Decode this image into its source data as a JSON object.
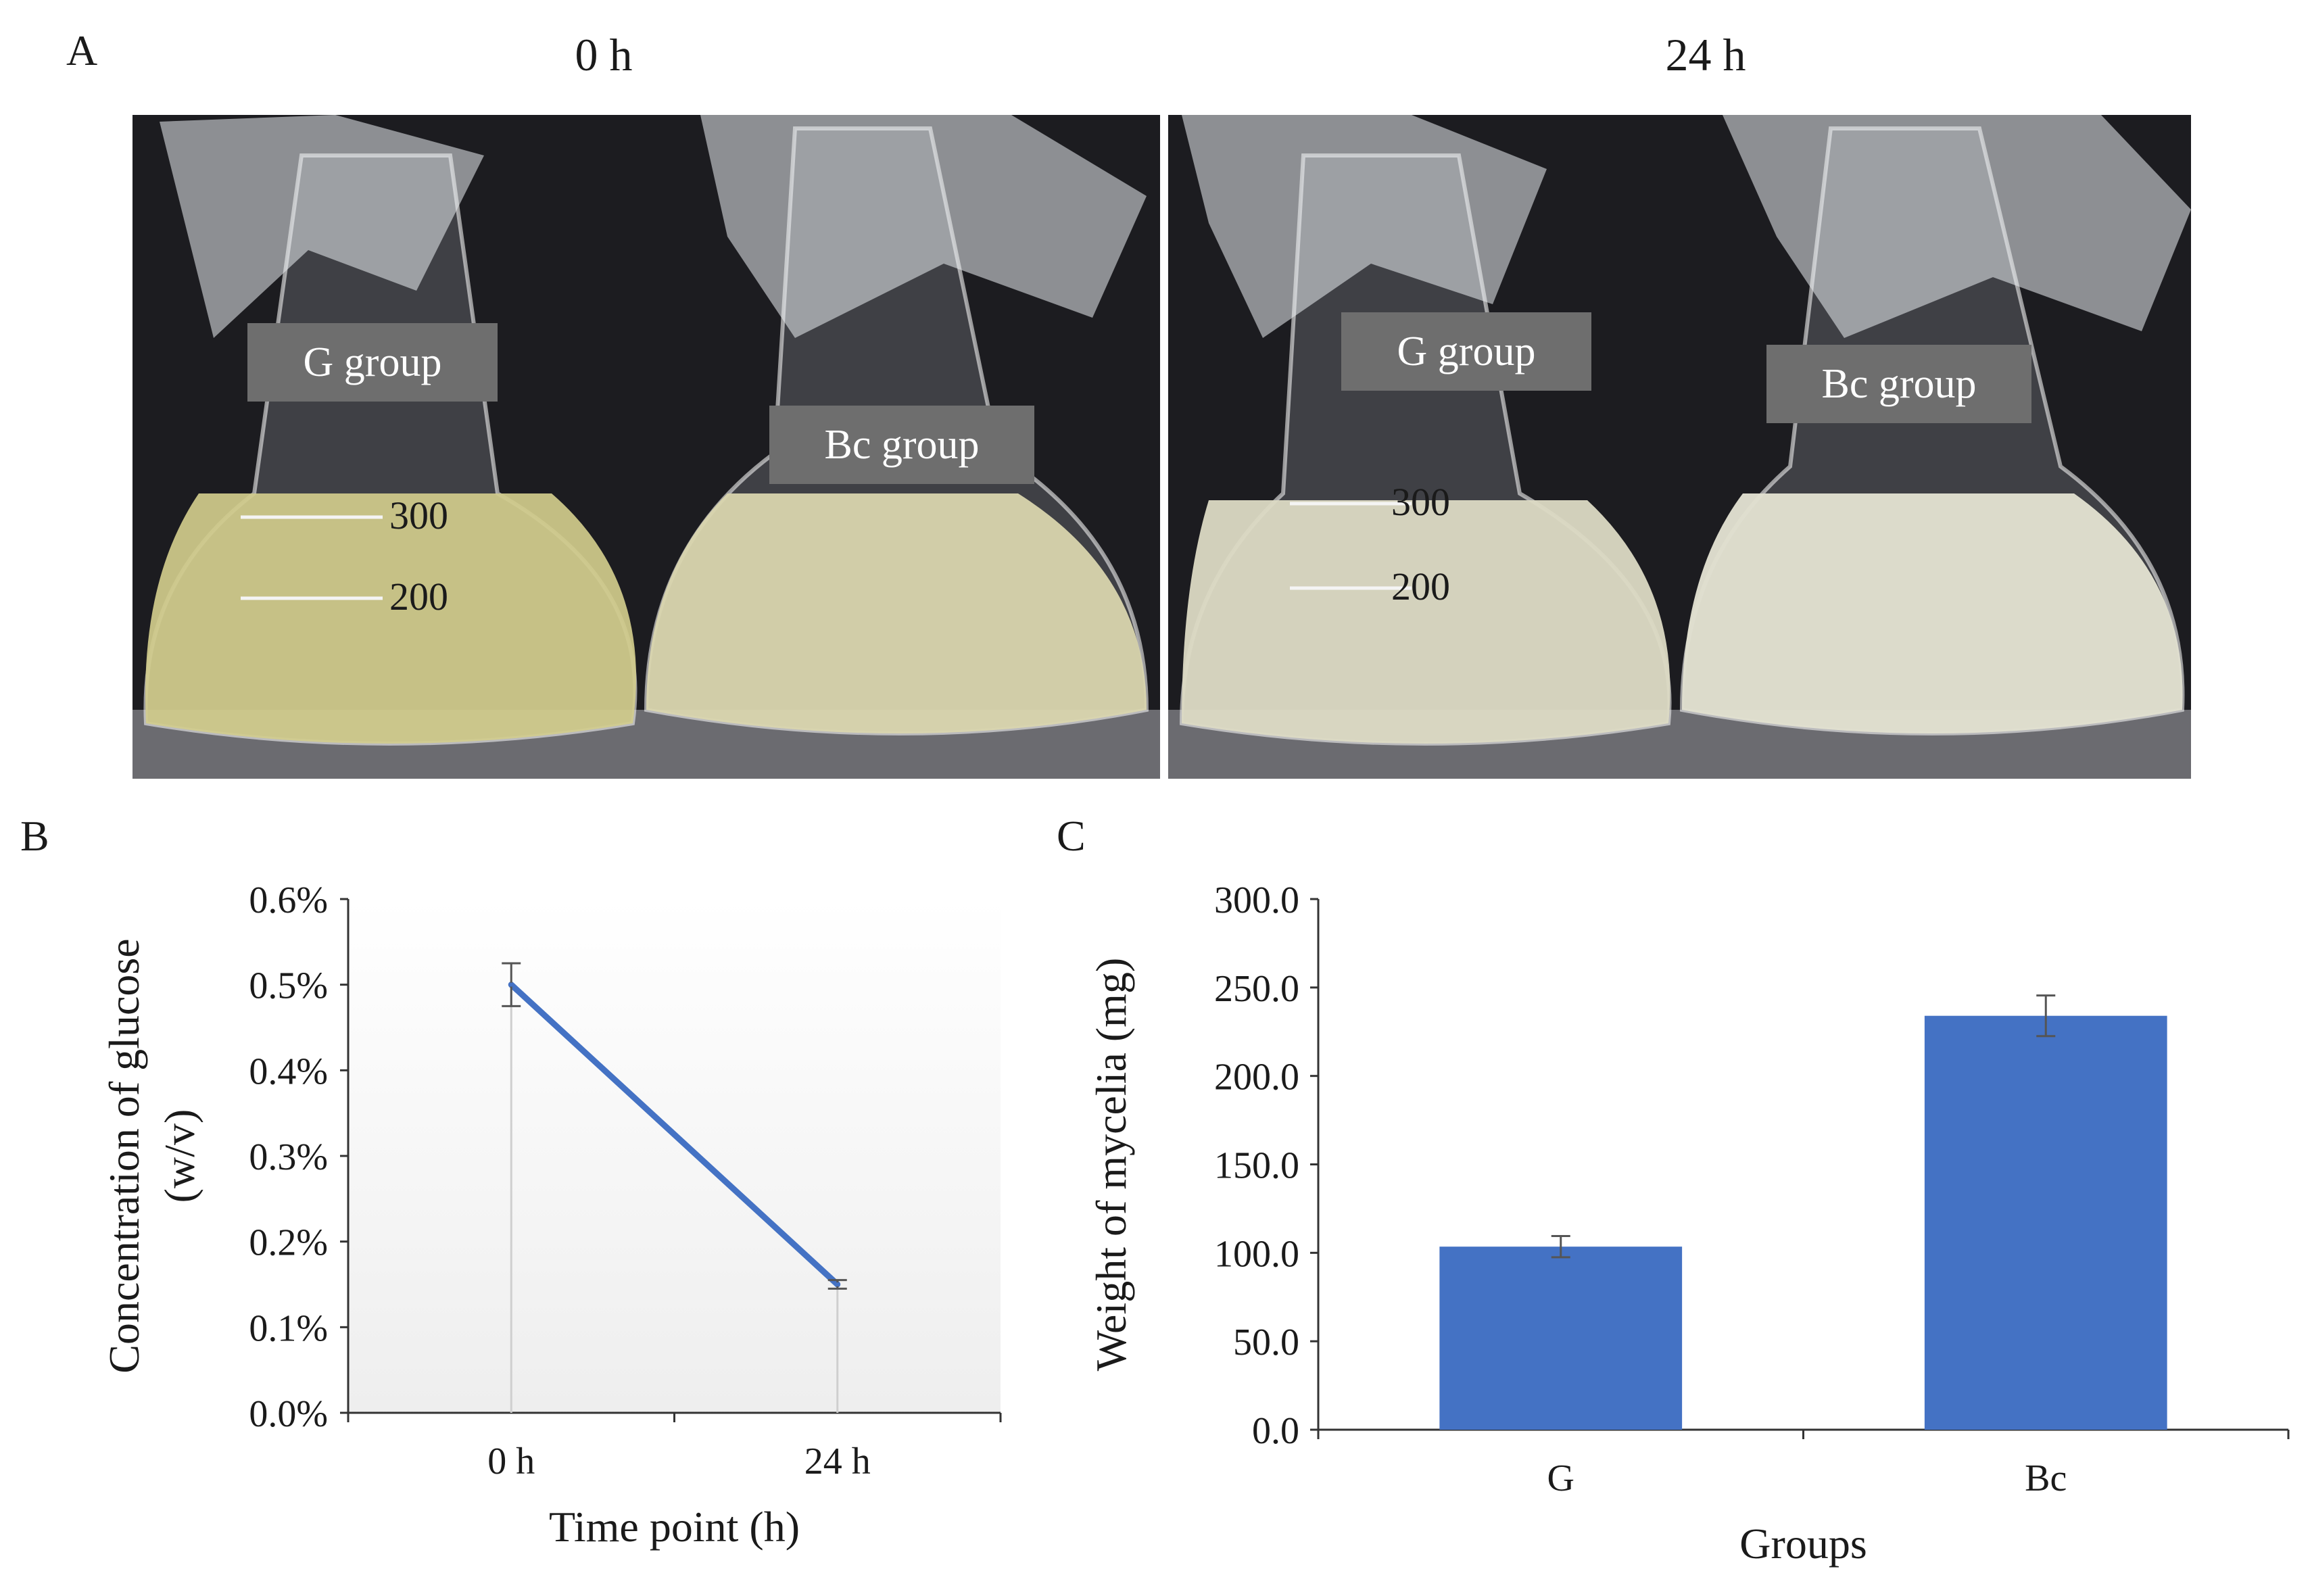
{
  "panel_a": {
    "letter": "A",
    "photos": [
      {
        "time_label": "0 h",
        "flasks": [
          {
            "label": "G group",
            "marks": [
              "300",
              "200"
            ],
            "liquid_color": "#d6d29a"
          },
          {
            "label": "Bc group",
            "marks": [],
            "liquid_color": "#dcd8b2"
          }
        ]
      },
      {
        "time_label": "24 h",
        "flasks": [
          {
            "label": "G group",
            "marks": [
              "300",
              "200"
            ],
            "liquid_color": "#dedcc7"
          },
          {
            "label": "Bc group",
            "marks": [],
            "liquid_color": "#e2e1d2"
          }
        ]
      }
    ]
  },
  "chart_data": [
    {
      "panel": "B",
      "type": "line",
      "categories": [
        "0 h",
        "24 h"
      ],
      "series": [
        {
          "name": "Glucose",
          "values": [
            0.5,
            0.15
          ],
          "errors": [
            0.025,
            0.005
          ],
          "color": "#4472c4"
        }
      ],
      "ylim": [
        0,
        0.6
      ],
      "yticks": [
        "0.0%",
        "0.1%",
        "0.2%",
        "0.3%",
        "0.4%",
        "0.5%",
        "0.6%"
      ],
      "xlabel": "Time point (h)",
      "ylabel_lines": [
        "Concentration of glucose",
        "(w/v)"
      ],
      "grid": false
    },
    {
      "panel": "C",
      "type": "bar",
      "categories": [
        "G",
        "Bc"
      ],
      "series": [
        {
          "name": "Weight of mycelia",
          "values": [
            103.5,
            234.0
          ],
          "errors": [
            6.0,
            11.5
          ],
          "color": "#4472c4"
        }
      ],
      "ylim": [
        0,
        300
      ],
      "yticks": [
        "0.0",
        "50.0",
        "100.0",
        "150.0",
        "200.0",
        "250.0",
        "300.0"
      ],
      "xlabel": "Groups",
      "ylabel": "Weight of mycelia (mg)",
      "grid": false
    }
  ]
}
